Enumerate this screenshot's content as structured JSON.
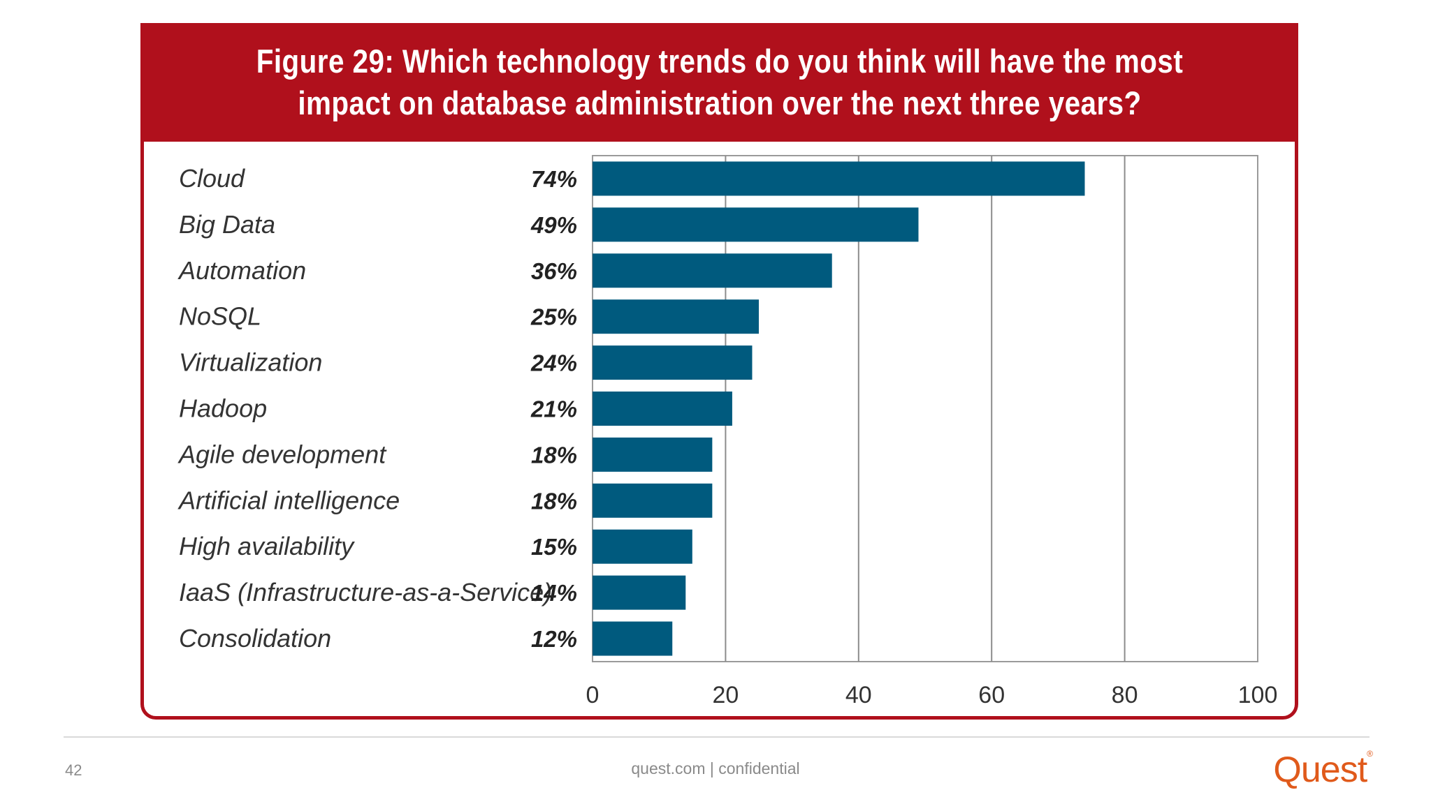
{
  "chart_data": {
    "type": "bar",
    "orientation": "horizontal",
    "title": "Figure 29: Which technology trends do you think will have the most impact on database administration over the next three years?",
    "categories": [
      "Cloud",
      "Big Data",
      "Automation",
      "NoSQL",
      "Virtualization",
      "Hadoop",
      "Agile development",
      "Artificial intelligence",
      "High availability",
      "IaaS (Infrastructure-as-a-Service)",
      "Consolidation"
    ],
    "values": [
      74,
      49,
      36,
      25,
      24,
      21,
      18,
      18,
      15,
      14,
      12
    ],
    "value_labels": [
      "74%",
      "49%",
      "36%",
      "25%",
      "24%",
      "21%",
      "18%",
      "18%",
      "15%",
      "14%",
      "12%"
    ],
    "xlim": [
      0,
      100
    ],
    "xticks": [
      0,
      20,
      40,
      60,
      80,
      100
    ],
    "xlabel": "",
    "ylabel": "",
    "grid": true,
    "bar_color": "#005a7e"
  },
  "colors": {
    "title_bar": "#b0101c",
    "bar": "#005a7e",
    "brand": "#e05a1b"
  },
  "footer": {
    "page_number": "42",
    "center_text": "quest.com | confidential",
    "brand": "Quest"
  }
}
